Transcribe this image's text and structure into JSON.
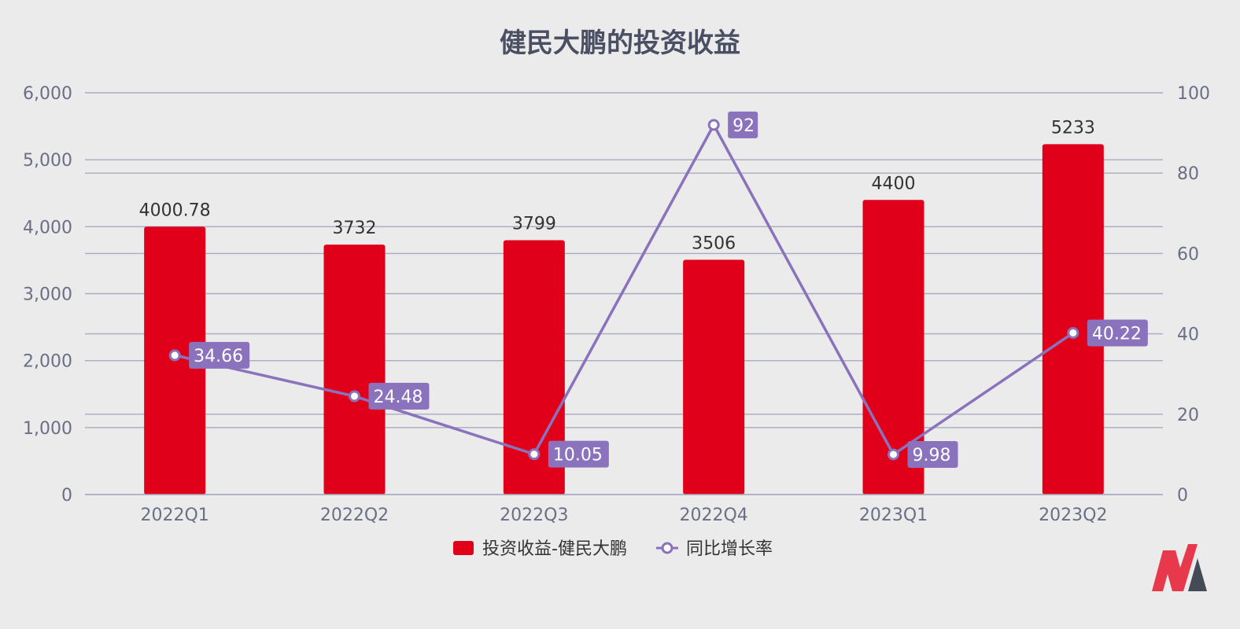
{
  "colors": {
    "background": "#ebebeb",
    "title": "#4a4f63",
    "axis_text": "#6b6f85",
    "grid": "#a9abbe",
    "bar": "#e0001a",
    "line": "#8a72bc",
    "label_text": "#333333",
    "point_label_bg": "#8a72bc",
    "point_label_text": "#ffffff",
    "logo_red": "#e8384b",
    "logo_dark": "#444b55"
  },
  "logo": {
    "icon": "brand-logo-icon"
  },
  "chart_data": {
    "type": "bar",
    "title": "健民大鹏的投资收益",
    "categories": [
      "2022Q1",
      "2022Q2",
      "2022Q3",
      "2022Q4",
      "2023Q1",
      "2023Q2"
    ],
    "series": [
      {
        "name": "投资收益-健民大鹏",
        "type": "bar",
        "axis": "left",
        "values": [
          4000.78,
          3732,
          3799,
          3506,
          4400,
          5233
        ],
        "labels": [
          "4000.78",
          "3732",
          "3799",
          "3506",
          "4400",
          "5233"
        ]
      },
      {
        "name": "同比增长率",
        "type": "line",
        "axis": "right",
        "values": [
          34.66,
          24.48,
          10.05,
          92,
          9.98,
          40.22
        ],
        "labels": [
          "34.66",
          "24.48",
          "10.05",
          "92",
          "9.98",
          "40.22"
        ]
      }
    ],
    "y_left": {
      "min": 0,
      "max": 6000,
      "ticks": [
        0,
        1000,
        2000,
        3000,
        4000,
        5000,
        6000
      ],
      "tick_labels": [
        "0",
        "1,000",
        "2,000",
        "3,000",
        "4,000",
        "5,000",
        "6,000"
      ]
    },
    "y_right": {
      "min": 0,
      "max": 100,
      "ticks": [
        0,
        20,
        40,
        60,
        80,
        100
      ],
      "tick_labels": [
        "0",
        "20",
        "40",
        "60",
        "80",
        "100"
      ]
    },
    "grid": true,
    "legend": "bottom"
  }
}
